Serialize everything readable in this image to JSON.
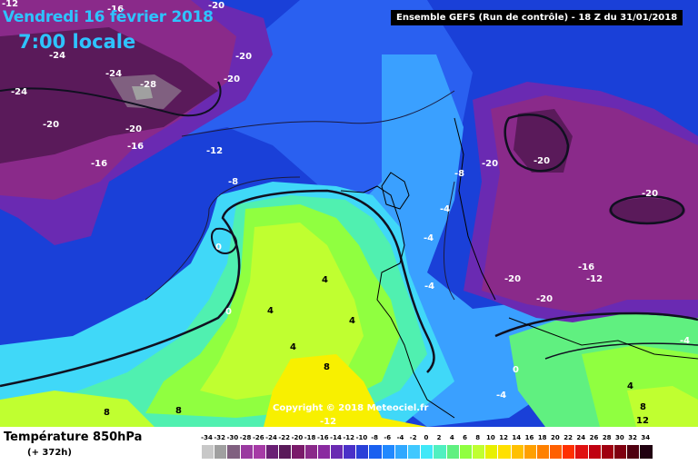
{
  "header": {
    "date": "Vendredi 16 février 2018",
    "time": "7:00 locale",
    "run_info": "Ensemble GEFS  (Run de contrôle)  - 18 Z du 31/01/2018"
  },
  "footer": {
    "parameter": "Température 850hPa",
    "lead_time": "(+ 372h)",
    "copyright": "Copyright © 2018 Meteociel.fr"
  },
  "legend": {
    "ticks": [
      "-34",
      "-32",
      "-30",
      "-28",
      "-26",
      "-24",
      "-22",
      "-20",
      "-18",
      "-16",
      "-14",
      "-12",
      "-10",
      "-8",
      "-6",
      "-4",
      "-2",
      "0",
      "2",
      "4",
      "6",
      "8",
      "10",
      "12",
      "14",
      "16",
      "18",
      "20",
      "22",
      "24",
      "26",
      "28",
      "30",
      "32",
      "34"
    ],
    "colors": [
      "#c8c8c8",
      "#a0a0a0",
      "#806080",
      "#9a3aa0",
      "#a63aa6",
      "#6a1f74",
      "#5a1a5a",
      "#7a1a6a",
      "#8a2a8a",
      "#8a2aa0",
      "#6a2ab2",
      "#4a30c8",
      "#2a40d8",
      "#1a60f0",
      "#2088ff",
      "#30a8ff",
      "#40c8ff",
      "#40e8f8",
      "#50f0c0",
      "#60f080",
      "#90ff40",
      "#c0ff30",
      "#e8f000",
      "#ffe000",
      "#ffc000",
      "#ffa000",
      "#ff8000",
      "#ff6000",
      "#ff3000",
      "#e01010",
      "#c00010",
      "#a00010",
      "#800010",
      "#500010",
      "#200010"
    ]
  },
  "map_labels": [
    {
      "text": "-12"
    },
    {
      "text": "-16"
    },
    {
      "text": "-20"
    },
    {
      "text": "-24"
    },
    {
      "text": "-24"
    },
    {
      "text": "-20"
    },
    {
      "text": "-24"
    },
    {
      "text": "-28"
    },
    {
      "text": "-20"
    },
    {
      "text": "-20"
    },
    {
      "text": "-20"
    },
    {
      "text": "-16"
    },
    {
      "text": "-16"
    },
    {
      "text": "-12"
    },
    {
      "text": "-8"
    },
    {
      "text": "0"
    },
    {
      "text": "0"
    },
    {
      "text": "4"
    },
    {
      "text": "4"
    },
    {
      "text": "4"
    },
    {
      "text": "4"
    },
    {
      "text": "8"
    },
    {
      "text": "8"
    },
    {
      "text": "8"
    },
    {
      "text": "-12"
    },
    {
      "text": "-4"
    },
    {
      "text": "-4"
    },
    {
      "text": "-4"
    },
    {
      "text": "-8"
    },
    {
      "text": "-20"
    },
    {
      "text": "-20"
    },
    {
      "text": "-20"
    },
    {
      "text": "-20"
    },
    {
      "text": "-16"
    },
    {
      "text": "-12"
    },
    {
      "text": "-20"
    },
    {
      "text": "0"
    },
    {
      "text": "-4"
    },
    {
      "text": "-4"
    },
    {
      "text": "4"
    },
    {
      "text": "8"
    },
    {
      "text": "12"
    }
  ]
}
